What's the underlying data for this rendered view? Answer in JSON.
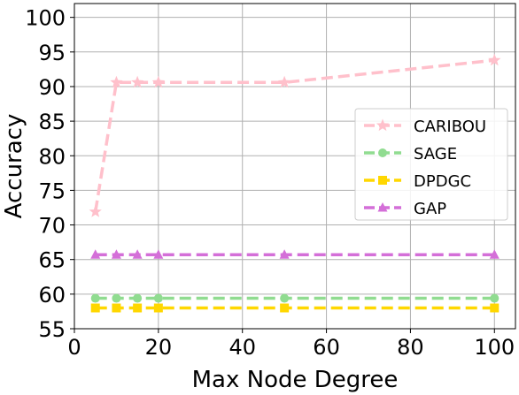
{
  "chart_data": {
    "type": "line",
    "title": "",
    "xlabel": "Max Node Degree",
    "ylabel": "Accuracy",
    "xlim": [
      0,
      105
    ],
    "ylim": [
      55,
      102
    ],
    "xticks": [
      0,
      20,
      40,
      60,
      80,
      100
    ],
    "yticks": [
      55,
      60,
      65,
      70,
      75,
      80,
      85,
      90,
      95,
      100
    ],
    "grid": true,
    "legend_position": "center-right",
    "series": [
      {
        "name": "CARIBOU",
        "marker": "star",
        "linestyle": "dashed",
        "color": "#ffc0cb",
        "x": [
          5,
          10,
          15,
          20,
          50,
          100
        ],
        "y": [
          71.9,
          90.6,
          90.6,
          90.6,
          90.6,
          93.8
        ]
      },
      {
        "name": "SAGE",
        "marker": "circle",
        "linestyle": "dashed",
        "color": "#90dc90",
        "x": [
          5,
          10,
          15,
          20,
          50,
          100
        ],
        "y": [
          59.4,
          59.4,
          59.4,
          59.4,
          59.4,
          59.4
        ]
      },
      {
        "name": "DPDGC",
        "marker": "square",
        "linestyle": "dashed",
        "color": "#ffd700",
        "x": [
          5,
          10,
          15,
          20,
          50,
          100
        ],
        "y": [
          58.0,
          58.0,
          58.0,
          58.0,
          58.0,
          58.0
        ]
      },
      {
        "name": "GAP",
        "marker": "triangle",
        "linestyle": "dashed",
        "color": "#d46fd8",
        "x": [
          5,
          10,
          15,
          20,
          50,
          100
        ],
        "y": [
          65.7,
          65.7,
          65.7,
          65.7,
          65.7,
          65.7
        ]
      }
    ]
  }
}
